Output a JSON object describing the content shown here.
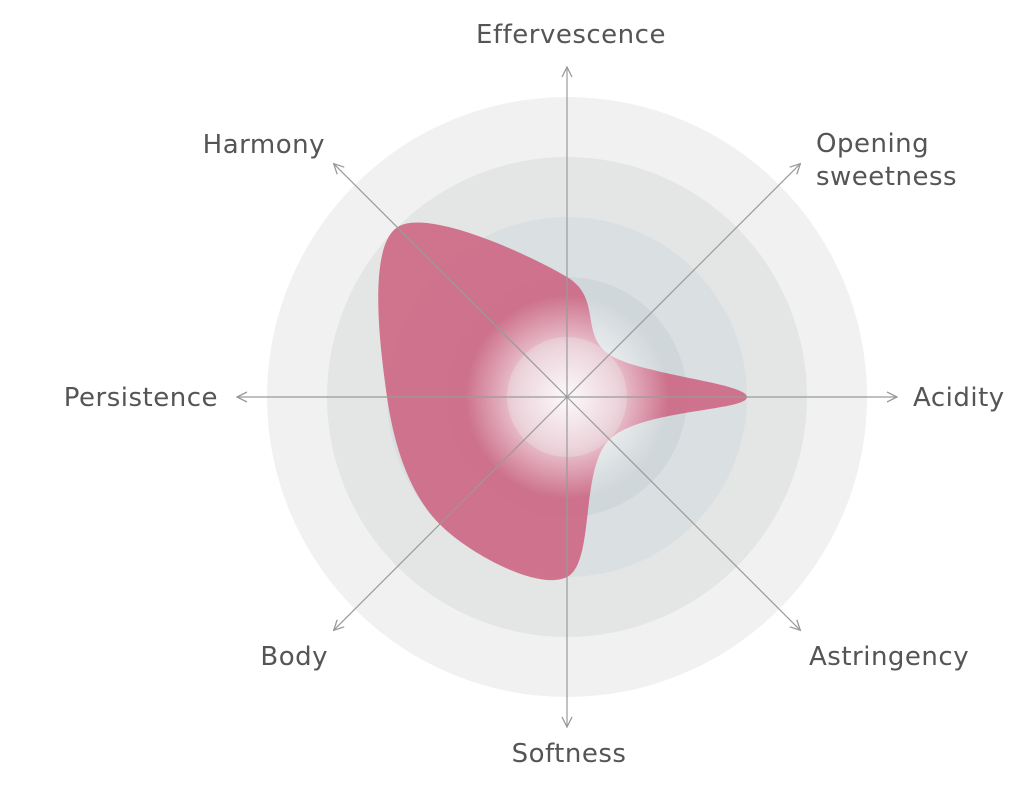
{
  "chart_data": {
    "type": "radar",
    "categories": [
      "Effervescence",
      "Opening sweetness",
      "Acidity",
      "Astringency",
      "Softness",
      "Body",
      "Persistence",
      "Harmony"
    ],
    "label_lines": [
      [
        "Effervescence"
      ],
      [
        "Opening",
        "sweetness"
      ],
      [
        "Acidity"
      ],
      [
        "Astringency"
      ],
      [
        "Softness"
      ],
      [
        "Body"
      ],
      [
        "Persistence"
      ],
      [
        "Harmony"
      ]
    ],
    "values": [
      2,
      1,
      3,
      1,
      3,
      3,
      3,
      4
    ],
    "rlim": [
      0,
      5
    ],
    "rings": 5,
    "grid": true,
    "colors": {
      "fill": "#cc5a7a",
      "rings": [
        "#f1f1f1",
        "#e4e6e6",
        "#dadfe2",
        "#d0d7da"
      ],
      "axis": "#9a9a9a",
      "label": "#555555"
    }
  }
}
